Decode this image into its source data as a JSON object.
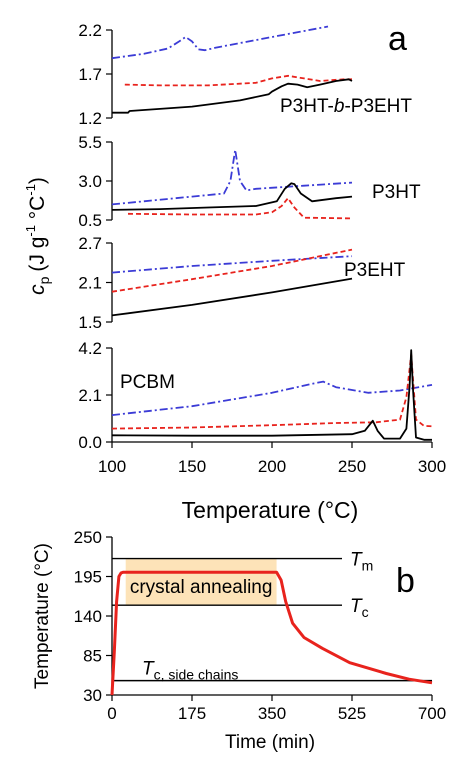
{
  "chart_data": [
    {
      "type": "line",
      "panel_label": "a",
      "xlabel": "Temperature (°C)",
      "ylabel_main": "c",
      "ylabel_sub": "p",
      "ylabel_unit": "(J g",
      "ylabel_sup1": "-1",
      "ylabel_deg": " °C",
      "ylabel_sup2": "-1",
      "ylabel_close": ")",
      "xlim": [
        100,
        300
      ],
      "xticks": [
        100,
        150,
        200,
        250,
        300
      ],
      "subplots": [
        {
          "label_pre": "P3HT-",
          "label_ital": "b",
          "label_post": "-P3EHT",
          "ylim": [
            1.2,
            2.2
          ],
          "yticks": [
            "1.2",
            "1.7",
            "2.2"
          ],
          "series": [
            {
              "style": "dashdot",
              "color": "#3b3bd6",
              "x": [
                100,
                120,
                135,
                142,
                146,
                150,
                154,
                158,
                165,
                200,
                235
              ],
              "y": [
                1.88,
                1.93,
                1.99,
                2.07,
                2.12,
                2.07,
                1.98,
                1.97,
                2.0,
                2.12,
                2.24
              ]
            },
            {
              "style": "dashed",
              "color": "#e8231d",
              "x": [
                108,
                130,
                160,
                190,
                200,
                210,
                220,
                230,
                245,
                250
              ],
              "y": [
                1.58,
                1.57,
                1.57,
                1.6,
                1.65,
                1.68,
                1.65,
                1.62,
                1.64,
                1.64
              ]
            },
            {
              "style": "solid",
              "color": "#000000",
              "x": [
                100,
                110,
                111,
                150,
                180,
                198,
                200,
                206,
                210,
                216,
                222,
                230,
                240,
                248,
                250
              ],
              "y": [
                1.26,
                1.26,
                1.28,
                1.33,
                1.4,
                1.47,
                1.5,
                1.56,
                1.59,
                1.58,
                1.55,
                1.58,
                1.62,
                1.64,
                1.62
              ]
            }
          ]
        },
        {
          "label_pre": "P3HT",
          "label_ital": "",
          "label_post": "",
          "ylim": [
            0.5,
            5.5
          ],
          "yticks": [
            "0.5",
            "3.0",
            "5.5"
          ],
          "series": [
            {
              "style": "dashdot",
              "color": "#3b3bd6",
              "x": [
                100,
                150,
                170,
                174,
                177,
                180,
                184,
                190,
                220,
                250
              ],
              "y": [
                1.5,
                2.0,
                2.2,
                3.0,
                5.0,
                3.0,
                2.4,
                2.5,
                2.7,
                2.9
              ]
            },
            {
              "style": "dashed",
              "color": "#e8231d",
              "x": [
                110,
                150,
                190,
                200,
                206,
                210,
                214,
                220,
                250
              ],
              "y": [
                0.9,
                0.85,
                0.85,
                1.0,
                1.4,
                1.9,
                1.3,
                0.65,
                0.6
              ]
            },
            {
              "style": "solid",
              "color": "#000000",
              "x": [
                100,
                130,
                160,
                190,
                203,
                208,
                212,
                214,
                218,
                225,
                240,
                250
              ],
              "y": [
                1.15,
                1.2,
                1.3,
                1.4,
                1.7,
                2.5,
                2.85,
                2.8,
                2.2,
                1.7,
                1.9,
                2.0
              ]
            }
          ]
        },
        {
          "label_pre": "P3EHT",
          "label_ital": "",
          "label_post": "",
          "ylim": [
            1.5,
            2.7
          ],
          "yticks": [
            "1.5",
            "2.1",
            "2.7"
          ],
          "series": [
            {
              "style": "dashdot",
              "color": "#3b3bd6",
              "x": [
                100,
                150,
                200,
                250
              ],
              "y": [
                2.25,
                2.35,
                2.43,
                2.5
              ]
            },
            {
              "style": "dashed",
              "color": "#e8231d",
              "x": [
                100,
                150,
                200,
                250
              ],
              "y": [
                1.96,
                2.15,
                2.35,
                2.6
              ]
            },
            {
              "style": "solid",
              "color": "#000000",
              "x": [
                100,
                150,
                200,
                250
              ],
              "y": [
                1.6,
                1.76,
                1.95,
                2.16
              ]
            }
          ]
        },
        {
          "label_pre": "PCBM",
          "label_ital": "",
          "label_post": "",
          "ylim": [
            0.0,
            4.2
          ],
          "yticks": [
            "0.0",
            "2.1",
            "4.2"
          ],
          "series": [
            {
              "style": "dashdot",
              "color": "#3b3bd6",
              "x": [
                100,
                150,
                200,
                225,
                232,
                240,
                260,
                280,
                300
              ],
              "y": [
                1.2,
                1.6,
                2.2,
                2.6,
                2.7,
                2.45,
                2.2,
                2.3,
                2.55
              ]
            },
            {
              "style": "dashed",
              "color": "#e8231d",
              "x": [
                100,
                150,
                200,
                240,
                265,
                280,
                284,
                287,
                290,
                295,
                300
              ],
              "y": [
                0.6,
                0.65,
                0.75,
                0.85,
                0.88,
                1.0,
                2.0,
                3.9,
                1.0,
                0.72,
                0.7
              ]
            },
            {
              "style": "solid",
              "color": "#000000",
              "x": [
                100,
                150,
                200,
                250,
                258,
                263,
                266,
                270,
                280,
                284,
                286,
                287,
                288,
                290,
                295,
                300
              ],
              "y": [
                0.3,
                0.28,
                0.28,
                0.35,
                0.5,
                0.95,
                0.5,
                0.15,
                0.15,
                0.6,
                2.5,
                4.1,
                2.5,
                0.2,
                0.1,
                0.1
              ]
            }
          ]
        }
      ]
    },
    {
      "type": "line",
      "panel_label": "b",
      "xlabel": "Time (min)",
      "ylabel": "Temperature (°C)",
      "xlim": [
        0,
        700
      ],
      "ylim": [
        30,
        250
      ],
      "xticks": [
        "0",
        "175",
        "350",
        "525",
        "700"
      ],
      "yticks": [
        "30",
        "85",
        "140",
        "195",
        "250"
      ],
      "levels": [
        {
          "name": "T",
          "sub": "m",
          "y": 220
        },
        {
          "name": "T",
          "sub": "c",
          "y": 155
        },
        {
          "name": "T",
          "sub": "c, side chains",
          "y": 50
        }
      ],
      "annotation": "crystal annealing",
      "annotation_color": "#fde3b8",
      "annotation_span": {
        "x": [
          30,
          360
        ],
        "y": [
          155,
          220
        ]
      },
      "series": [
        {
          "style": "solid",
          "color": "#e8231d",
          "x": [
            0,
            5,
            10,
            15,
            20,
            25,
            30,
            360,
            370,
            380,
            395,
            420,
            460,
            520,
            600,
            650,
            700
          ],
          "y": [
            30,
            90,
            160,
            195,
            200,
            201,
            201,
            201,
            190,
            160,
            130,
            110,
            95,
            75,
            60,
            52,
            47
          ]
        }
      ]
    }
  ]
}
